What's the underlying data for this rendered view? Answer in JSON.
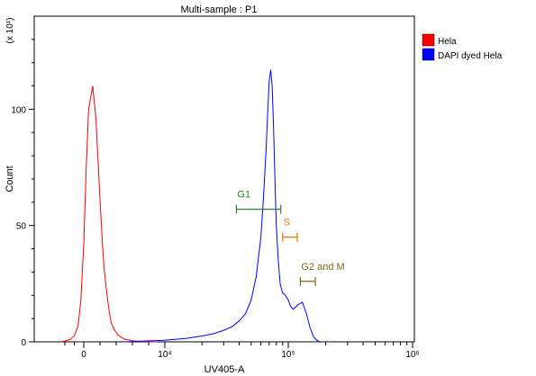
{
  "chart_data": {
    "type": "line",
    "title": "Multi-sample : P1",
    "xlabel": "UV405-A",
    "ylabel": "Count",
    "y_multiplier": "(x 10¹)",
    "x_scale": "biexponential",
    "xlim": [
      -3000,
      1000000
    ],
    "ylim": [
      0,
      140
    ],
    "x_ticks": [
      {
        "value": 0,
        "label": "0"
      },
      {
        "value": 10000,
        "label": "10⁴"
      },
      {
        "value": 100000,
        "label": "10⁵"
      },
      {
        "value": 1000000,
        "label": "10⁶"
      }
    ],
    "y_ticks": [
      0,
      50,
      100
    ],
    "legend_position": "top-right",
    "grid": false,
    "series": [
      {
        "name": "Hela",
        "color": "#ff0000",
        "x": [
          -2500,
          -2000,
          -1500,
          -1000,
          -600,
          -300,
          0,
          300,
          600,
          900,
          1100,
          1300,
          1500,
          1700,
          1900,
          2100,
          2300,
          2500,
          2800,
          3100,
          3400,
          3800,
          4200,
          4600,
          5000,
          5500,
          6000,
          6500,
          7000,
          8000,
          9000
        ],
        "y": [
          0,
          0.3,
          1,
          2.5,
          7,
          18,
          42,
          75,
          100,
          106,
          110,
          103,
          96,
          82,
          68,
          55,
          42,
          32,
          22,
          14,
          8,
          5,
          3,
          2,
          1.2,
          0.8,
          0.5,
          0.3,
          0.2,
          0.1,
          0
        ]
      },
      {
        "name": "DAPI dyed Hela",
        "color": "#0000ff",
        "x": [
          5000,
          7000,
          10000,
          15000,
          20000,
          25000,
          30000,
          35000,
          40000,
          45000,
          50000,
          55000,
          60000,
          63000,
          66000,
          68000,
          70000,
          72000,
          74000,
          76000,
          78000,
          80000,
          83000,
          86000,
          90000,
          95000,
          100000,
          105000,
          110000,
          120000,
          130000,
          140000,
          150000,
          160000,
          170000,
          180000
        ],
        "y": [
          0,
          0.3,
          0.7,
          1.5,
          2.5,
          3.5,
          5,
          6.5,
          9,
          12,
          18,
          28,
          45,
          62,
          82,
          98,
          112,
          117,
          110,
          92,
          70,
          50,
          35,
          25,
          21,
          20,
          18,
          15,
          14,
          16,
          17,
          12,
          6,
          2,
          0.6,
          0
        ]
      }
    ],
    "gates": [
      {
        "name": "G1",
        "range": [
          38000,
          87000
        ],
        "y": 57,
        "color": "#2e7d32"
      },
      {
        "name": "S",
        "range": [
          90000,
          118000
        ],
        "y": 45,
        "color": "#e07b00"
      },
      {
        "name": "G2 and M",
        "range": [
          125000,
          165000
        ],
        "y": 26,
        "color": "#7a6a1a"
      }
    ]
  }
}
